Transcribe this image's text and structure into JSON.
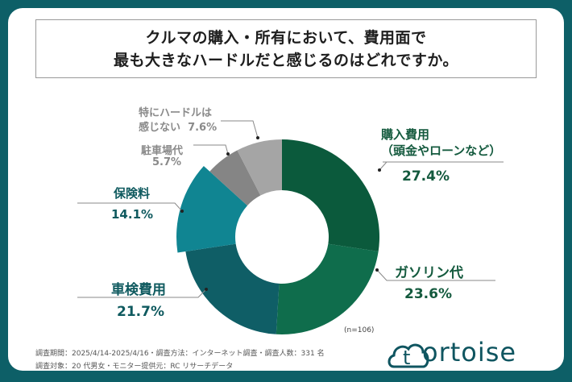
{
  "header": {
    "title_line1": "クルマの購入・所有において、費用面で",
    "title_line2": "最も大きなハードルだと感じるのはどれですか。"
  },
  "chart_data": {
    "type": "pie",
    "style": "donut",
    "title": "クルマの購入・所有において、費用面で最も大きなハードルだと感じるのはどれですか。",
    "sample_size": "(n=106)",
    "slices": [
      {
        "label": "購入費用（頭金やローンなど）",
        "label_line1": "購入費用",
        "label_line2": "（頭金やローンなど）",
        "value": 27.4,
        "value_label": "27.4%",
        "color": "#0b5a3c"
      },
      {
        "label": "ガソリン代",
        "value": 23.6,
        "value_label": "23.6%",
        "color": "#0f6d4c"
      },
      {
        "label": "車検費用",
        "value": 21.7,
        "value_label": "21.7%",
        "color": "#0f5e66"
      },
      {
        "label": "保険料",
        "value": 14.1,
        "value_label": "14.1%",
        "color": "#108592",
        "exploded": true
      },
      {
        "label": "駐車場代",
        "value": 5.7,
        "value_label": "5.7%",
        "color": "#858585"
      },
      {
        "label": "特にハードルは感じない",
        "label_line1": "特にハードルは",
        "label_line2": "感じない",
        "value": 7.6,
        "value_label": "7.6%",
        "color": "#a5a5a5"
      }
    ]
  },
  "footer": {
    "survey_line1": "調査期間：2025/4/14-2025/4/16・調査方法：インターネット調査・調査人数：331 名",
    "survey_line2": "調査対象：20 代男女・モニター提供元：RC リサーチデータ",
    "logo_text": "ortoise",
    "logo_initial": "t"
  }
}
